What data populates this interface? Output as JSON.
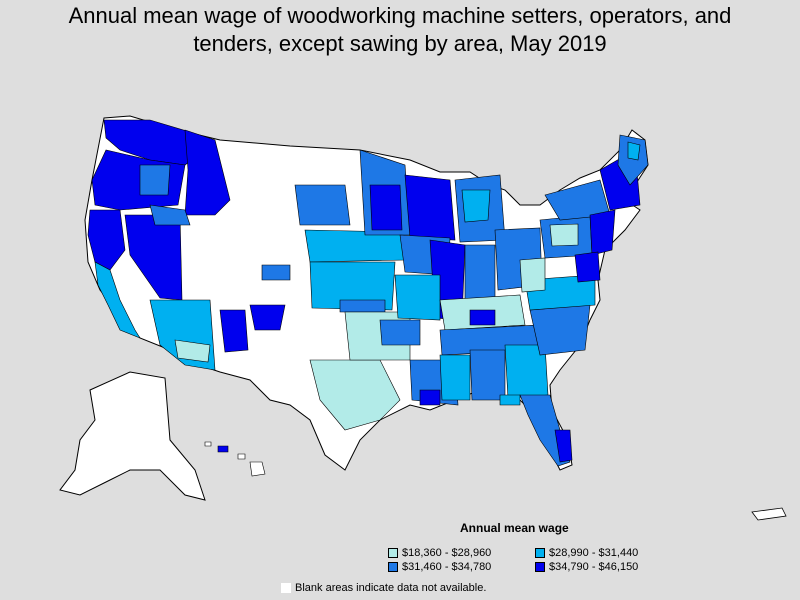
{
  "title": {
    "line1": "Annual mean wage of woodworking machine setters, operators, and",
    "line2": "tenders, except sawing by area, May 2019"
  },
  "legend": {
    "title": "Annual mean wage",
    "items": [
      {
        "label": "$18,360 - $28,960",
        "color": "#b2ebe8"
      },
      {
        "label": "$28,990 - $31,440",
        "color": "#00b0f0"
      },
      {
        "label": "$31,460 - $34,780",
        "color": "#1e78e6"
      },
      {
        "label": "$34,790 - $46,150",
        "color": "#0000ee"
      }
    ]
  },
  "note": "Blank areas indicate data not available."
}
